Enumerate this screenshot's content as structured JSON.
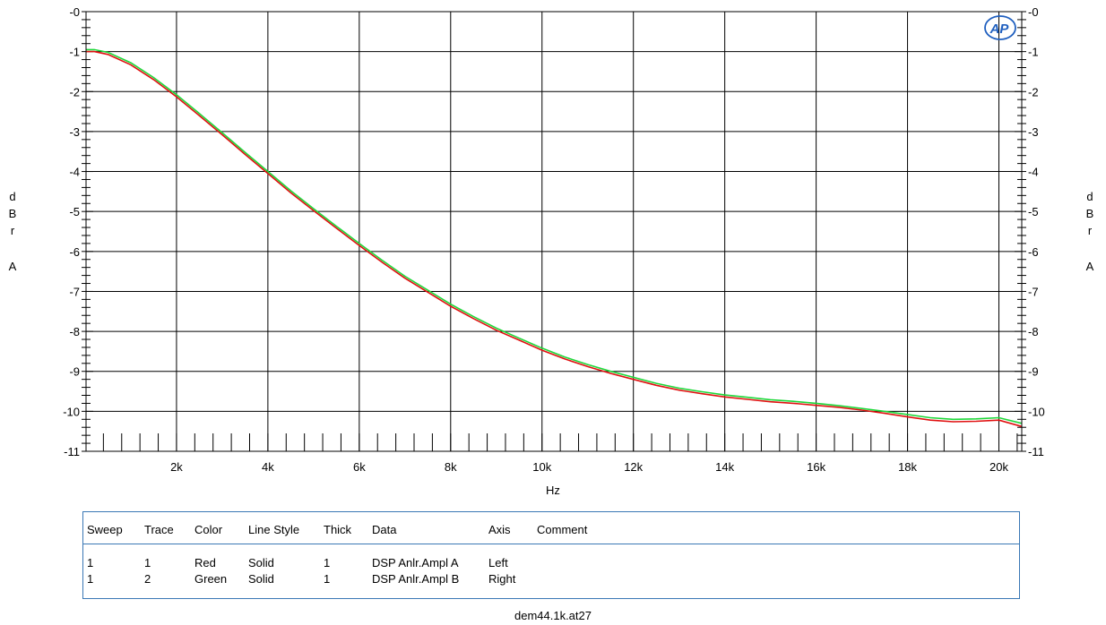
{
  "chart_data": {
    "type": "line",
    "title": "",
    "xlabel": "Hz",
    "ylabel_left": "dBr A",
    "ylabel_right": "dBr A",
    "xlim": [
      20,
      20500
    ],
    "ylim": [
      -11,
      0
    ],
    "x_ticks": [
      {
        "value": 2000,
        "label": "2k"
      },
      {
        "value": 4000,
        "label": "4k"
      },
      {
        "value": 6000,
        "label": "6k"
      },
      {
        "value": 8000,
        "label": "8k"
      },
      {
        "value": 10000,
        "label": "10k"
      },
      {
        "value": 12000,
        "label": "12k"
      },
      {
        "value": 14000,
        "label": "14k"
      },
      {
        "value": 16000,
        "label": "16k"
      },
      {
        "value": 18000,
        "label": "18k"
      },
      {
        "value": 20000,
        "label": "20k"
      }
    ],
    "y_ticks": [
      {
        "value": 0,
        "label": "-0"
      },
      {
        "value": -1,
        "label": "-1"
      },
      {
        "value": -2,
        "label": "-2"
      },
      {
        "value": -3,
        "label": "-3"
      },
      {
        "value": -4,
        "label": "-4"
      },
      {
        "value": -5,
        "label": "-5"
      },
      {
        "value": -6,
        "label": "-6"
      },
      {
        "value": -7,
        "label": "-7"
      },
      {
        "value": -8,
        "label": "-8"
      },
      {
        "value": -9,
        "label": "-9"
      },
      {
        "value": -10,
        "label": "-10"
      },
      {
        "value": -11,
        "label": "-11"
      }
    ],
    "grid": true,
    "series": [
      {
        "color": "#e01010",
        "x": [
          20,
          200,
          500,
          1000,
          1500,
          2000,
          2500,
          3000,
          3500,
          4000,
          4500,
          5000,
          5500,
          6000,
          6500,
          7000,
          7500,
          8000,
          8500,
          9000,
          9500,
          10000,
          10500,
          11000,
          11500,
          12000,
          12500,
          13000,
          13500,
          14000,
          14500,
          15000,
          15500,
          16000,
          16500,
          17000,
          17500,
          18000,
          18500,
          19000,
          19500,
          20000,
          20500
        ],
        "values": [
          -1.0,
          -1.0,
          -1.07,
          -1.33,
          -1.7,
          -2.13,
          -2.6,
          -3.08,
          -3.57,
          -4.05,
          -4.53,
          -4.98,
          -5.42,
          -5.85,
          -6.27,
          -6.67,
          -7.02,
          -7.37,
          -7.68,
          -7.97,
          -8.22,
          -8.47,
          -8.69,
          -8.88,
          -9.05,
          -9.2,
          -9.35,
          -9.47,
          -9.56,
          -9.64,
          -9.7,
          -9.76,
          -9.8,
          -9.85,
          -9.9,
          -9.97,
          -10.05,
          -10.14,
          -10.22,
          -10.26,
          -10.25,
          -10.22,
          -10.38
        ]
      },
      {
        "color": "#1ed83a",
        "x": [
          20,
          200,
          500,
          1000,
          1500,
          2000,
          2500,
          3000,
          3500,
          4000,
          4500,
          5000,
          5500,
          6000,
          6500,
          7000,
          7500,
          8000,
          8500,
          9000,
          9500,
          10000,
          10500,
          11000,
          11500,
          12000,
          12500,
          13000,
          13500,
          14000,
          14500,
          15000,
          15500,
          16000,
          16500,
          17000,
          17500,
          18000,
          18500,
          19000,
          19500,
          20000,
          20500
        ],
        "values": [
          -0.95,
          -0.95,
          -1.02,
          -1.28,
          -1.65,
          -2.08,
          -2.55,
          -3.03,
          -3.52,
          -4.0,
          -4.48,
          -4.93,
          -5.37,
          -5.8,
          -6.22,
          -6.62,
          -6.97,
          -7.32,
          -7.63,
          -7.92,
          -8.17,
          -8.42,
          -8.64,
          -8.83,
          -9.0,
          -9.15,
          -9.3,
          -9.42,
          -9.51,
          -9.59,
          -9.65,
          -9.71,
          -9.75,
          -9.8,
          -9.86,
          -9.93,
          -10.0,
          -10.08,
          -10.16,
          -10.2,
          -10.19,
          -10.16,
          -10.3
        ]
      }
    ]
  },
  "legend": {
    "headers": {
      "sweep": "Sweep",
      "trace": "Trace",
      "color": "Color",
      "line_style": "Line Style",
      "thick": "Thick",
      "data": "Data",
      "axis": "Axis",
      "comment": "Comment"
    },
    "rows": [
      {
        "sweep": "1",
        "trace": "1",
        "color": "Red",
        "line_style": "Solid",
        "thick": "1",
        "data": "DSP Anlr.Ampl A",
        "axis": "Left",
        "comment": ""
      },
      {
        "sweep": "1",
        "trace": "2",
        "color": "Green",
        "line_style": "Solid",
        "thick": "1",
        "data": "DSP Anlr.Ampl B",
        "axis": "Right",
        "comment": ""
      }
    ]
  },
  "footer": {
    "filename": "dem44.1k.at27"
  },
  "logo": {
    "text": "AP",
    "color": "#1f5fbf"
  }
}
